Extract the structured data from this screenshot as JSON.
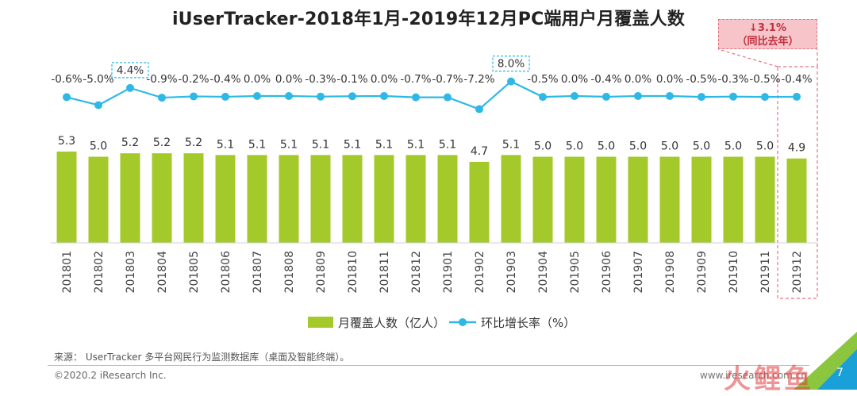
{
  "chart_data": {
    "type": "bar+line",
    "title": "iUserTracker-2018年1月-2019年12月PC端用户月覆盖人数",
    "categories": [
      "201801",
      "201802",
      "201803",
      "201804",
      "201805",
      "201806",
      "201807",
      "201808",
      "201809",
      "201810",
      "201811",
      "201812",
      "201901",
      "201902",
      "201903",
      "201904",
      "201905",
      "201906",
      "201907",
      "201908",
      "201909",
      "201910",
      "201911",
      "201912"
    ],
    "series": [
      {
        "name": "月覆盖人数（亿人）",
        "type": "bar",
        "color": "#a4c92a",
        "values": [
          5.3,
          5.0,
          5.2,
          5.2,
          5.2,
          5.1,
          5.1,
          5.1,
          5.1,
          5.1,
          5.1,
          5.1,
          5.1,
          4.7,
          5.1,
          5.0,
          5.0,
          5.0,
          5.0,
          5.0,
          5.0,
          5.0,
          5.0,
          4.9
        ],
        "labels": [
          "5.3",
          "5.0",
          "5.2",
          "5.2",
          "5.2",
          "5.1",
          "5.1",
          "5.1",
          "5.1",
          "5.1",
          "5.1",
          "5.1",
          "5.1",
          "4.7",
          "5.1",
          "5.0",
          "5.0",
          "5.0",
          "5.0",
          "5.0",
          "5.0",
          "5.0",
          "5.0",
          "4.9"
        ]
      },
      {
        "name": "环比增长率（%）",
        "type": "line",
        "color": "#2eb8e6",
        "values": [
          -0.6,
          -5.0,
          4.4,
          -0.9,
          -0.2,
          -0.4,
          0.0,
          0.0,
          -0.3,
          -0.1,
          0.0,
          -0.7,
          -0.7,
          -7.2,
          8.0,
          -0.5,
          0.0,
          -0.4,
          0.0,
          0.0,
          -0.5,
          -0.3,
          -0.5,
          -0.4
        ],
        "labels": [
          "-0.6%",
          "-5.0%",
          "4.4%",
          "-0.9%",
          "-0.2%",
          "-0.4%",
          "0.0%",
          "0.0%",
          "-0.3%",
          "-0.1%",
          "0.0%",
          "-0.7%",
          "-0.7%",
          "-7.2%",
          "8.0%",
          "-0.5%",
          "0.0%",
          "-0.4%",
          "0.0%",
          "0.0%",
          "-0.5%",
          "-0.3%",
          "-0.5%",
          "-0.4%"
        ],
        "boxed_labels": [
          2,
          14
        ]
      }
    ],
    "highlight_index": 23,
    "legend_position": "bottom-center",
    "grid": false
  },
  "callout": {
    "arrow": "↓",
    "value": "3.1%",
    "text": "（同比去年）"
  },
  "footer": {
    "source": "来源： UserTracker 多平台网民行为监测数据库（桌面及智能终端）。",
    "copyright": "©2020.2 iResearch Inc.",
    "site": "www.iresearch.com.cn",
    "page": "7",
    "watermark": "火鲤鱼"
  },
  "colors": {
    "accent_red": "#e8737f",
    "callout_bg": "#f6c4c9",
    "label_box": "#2eb8e6"
  }
}
